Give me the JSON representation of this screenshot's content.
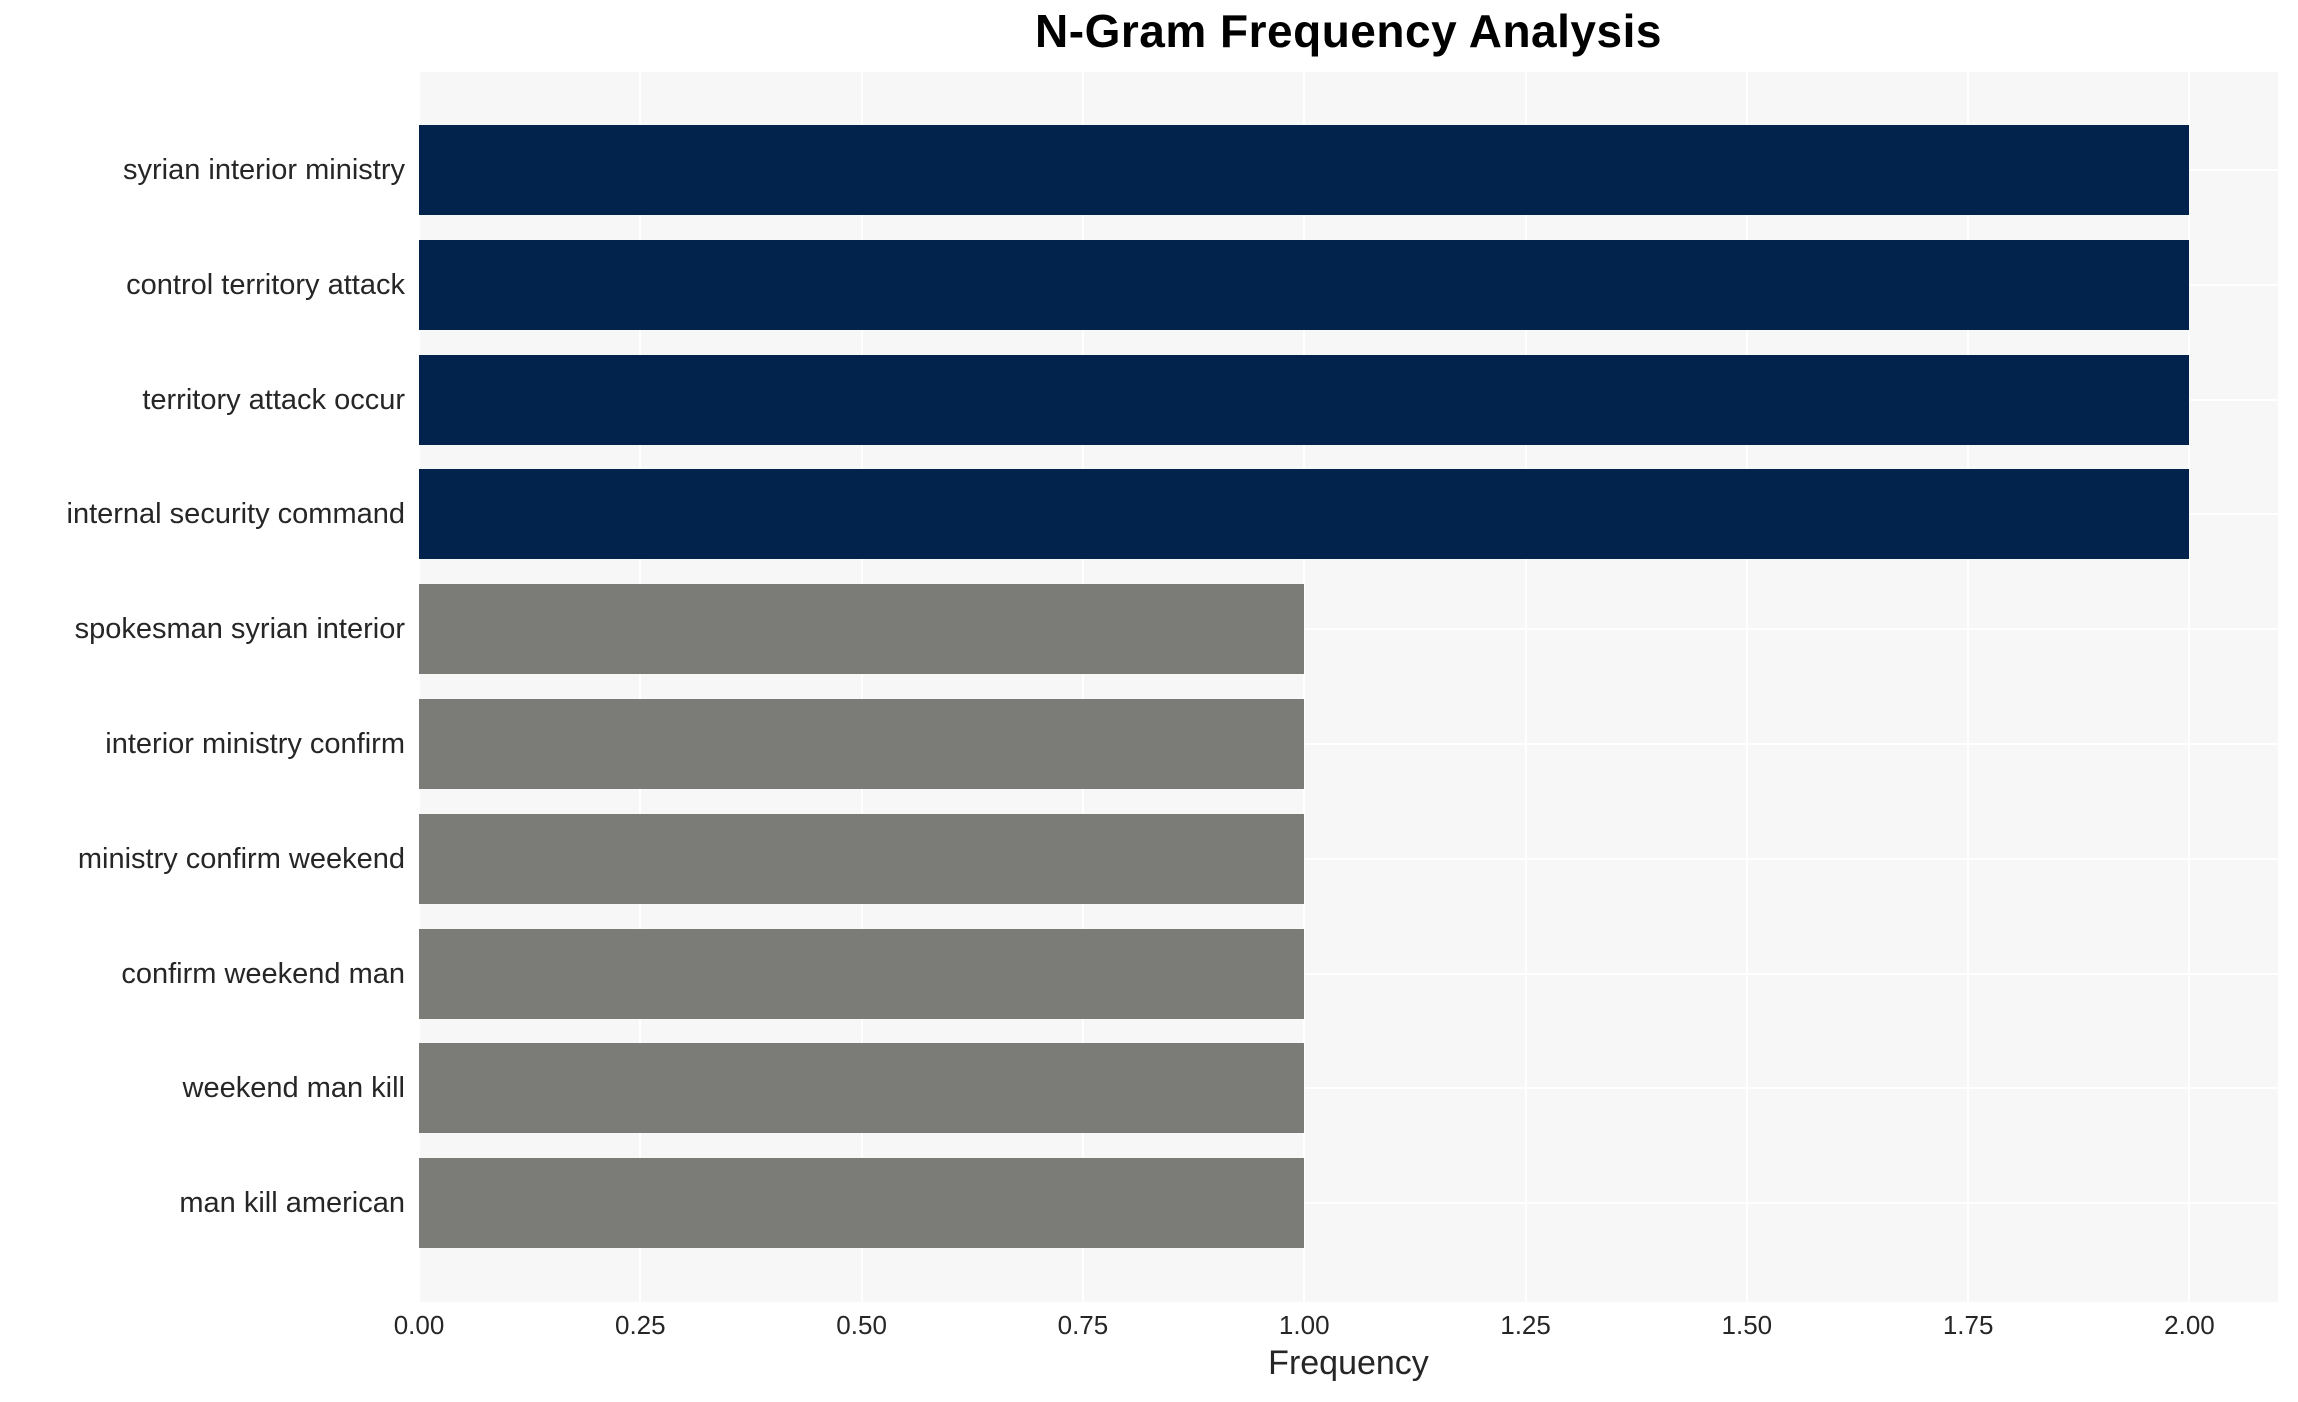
{
  "title": "N-Gram Frequency Analysis",
  "colors": {
    "figure_background": "#ffffff",
    "plot_background": "#f7f7f7",
    "gridline": "#ffffff",
    "bar_high": "#02234c",
    "bar_low": "#7b7b78",
    "text": "#262626",
    "title_text": "#000000"
  },
  "chart_data": {
    "type": "bar",
    "orientation": "horizontal",
    "title": "N-Gram Frequency Analysis",
    "xlabel": "Frequency",
    "ylabel": "",
    "categories": [
      "syrian interior ministry",
      "control territory attack",
      "territory attack occur",
      "internal security command",
      "spokesman syrian interior",
      "interior ministry confirm",
      "ministry confirm weekend",
      "confirm weekend man",
      "weekend man kill",
      "man kill american"
    ],
    "values": [
      2,
      2,
      2,
      2,
      1,
      1,
      1,
      1,
      1,
      1
    ],
    "bar_colors": [
      "#02234c",
      "#02234c",
      "#02234c",
      "#02234c",
      "#7b7b78",
      "#7b7b78",
      "#7b7b78",
      "#7b7b78",
      "#7b7b78",
      "#7b7b78"
    ],
    "xlim": [
      0,
      2.1
    ],
    "xticks": [
      0,
      0.25,
      0.5,
      0.75,
      1.0,
      1.25,
      1.5,
      1.75,
      2.0
    ],
    "xtick_labels": [
      "0.00",
      "0.25",
      "0.50",
      "0.75",
      "1.00",
      "1.25",
      "1.50",
      "1.75",
      "2.00"
    ],
    "grid": true,
    "legend": false
  }
}
